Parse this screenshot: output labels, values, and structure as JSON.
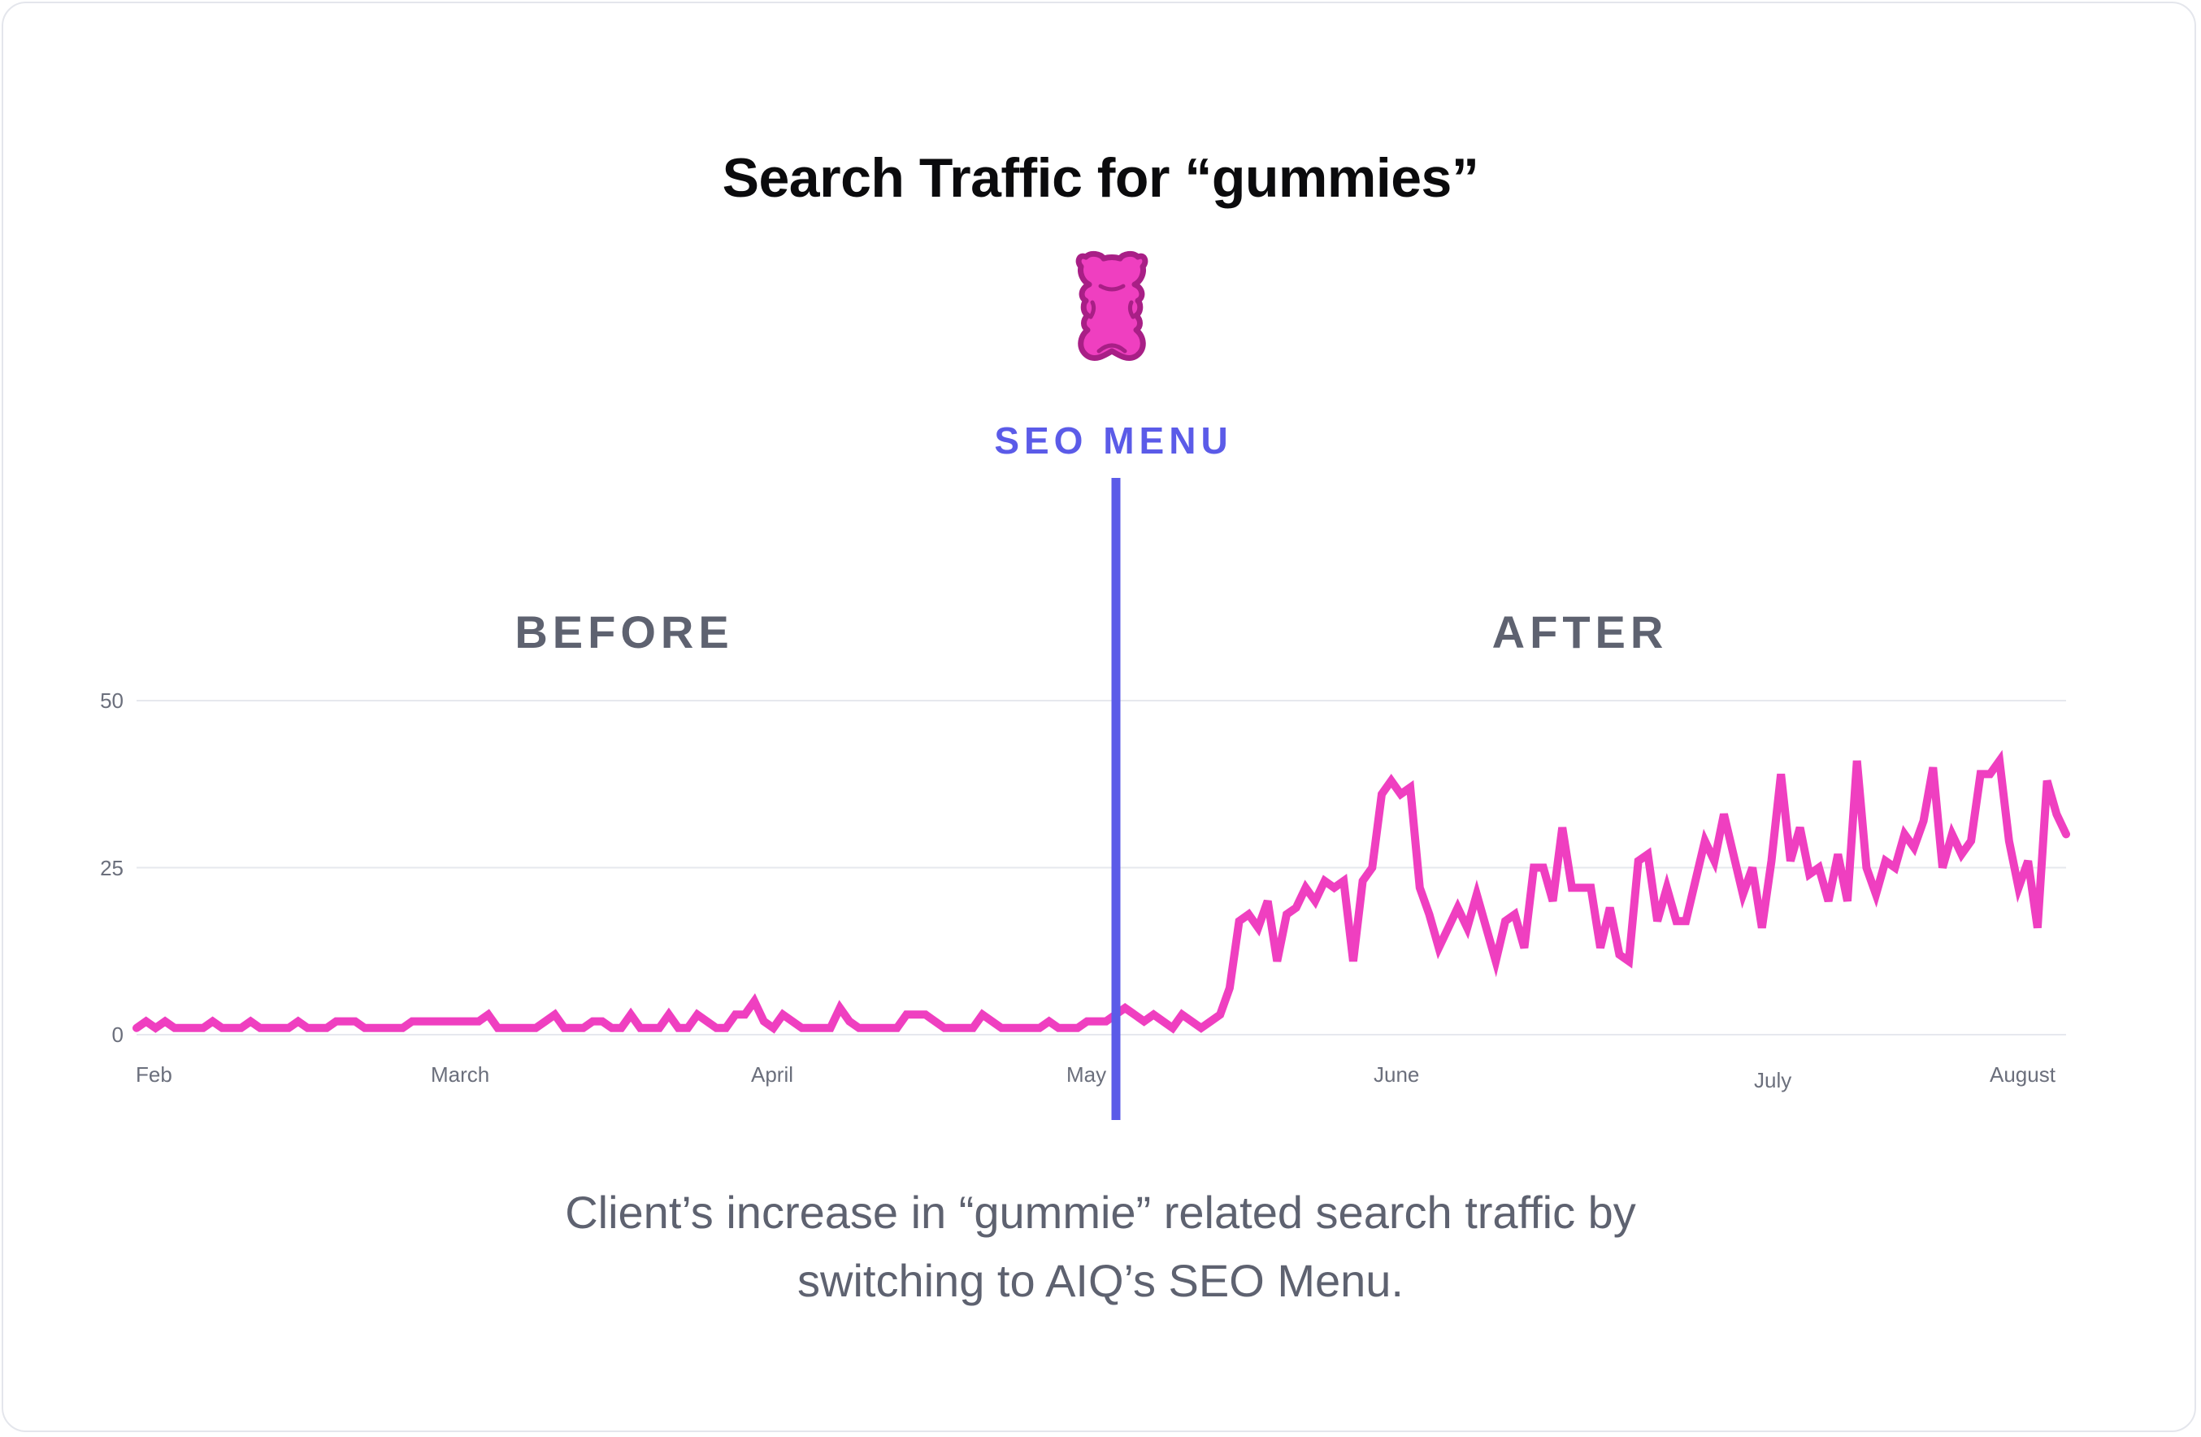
{
  "colors": {
    "line": "#ef3fc0",
    "marker": "#5b5be8",
    "grid": "#e6e8ee",
    "bear_fill": "#ef3fc0",
    "bear_stroke": "#a81f86"
  },
  "icon": "gummy-bear-icon",
  "caption": {
    "line1": "Client’s  increase in “gummie” related search traffic by",
    "line2": "switching to AIQ’s SEO Menu."
  },
  "chart_data": {
    "type": "line",
    "title": "Search Traffic for “gummies”",
    "y_ticks": [
      "50",
      "25",
      "0"
    ],
    "ylim": [
      0,
      50
    ],
    "grid": true,
    "x_tick_labels": [
      "Feb",
      "March",
      "April",
      "May",
      "June",
      "July",
      "August"
    ],
    "annotations": {
      "marker_label": "SEO MENU",
      "before_label": "BEFORE",
      "after_label": "AFTER",
      "marker_x": "May"
    },
    "series": [
      {
        "values": [
          1,
          2,
          1,
          2,
          1,
          1,
          1,
          1,
          2,
          1,
          1,
          1,
          2,
          1,
          1,
          1,
          1,
          2,
          1,
          1,
          1,
          2,
          2,
          2,
          1,
          1,
          1,
          1,
          1,
          2,
          2,
          2,
          2,
          2,
          2,
          2,
          2,
          3,
          1,
          1,
          1,
          1,
          1,
          2,
          3,
          1,
          1,
          1,
          2,
          2,
          1,
          1,
          3,
          1,
          1,
          1,
          3,
          1,
          1,
          3,
          2,
          1,
          1,
          3,
          3,
          5,
          2,
          1,
          3,
          2,
          1,
          1,
          1,
          1,
          4,
          2,
          1,
          1,
          1,
          1,
          1,
          3,
          3,
          3,
          2,
          1,
          1,
          1,
          1,
          3,
          2,
          1,
          1,
          1,
          1,
          1,
          2,
          1,
          1,
          1,
          2,
          2,
          2,
          3,
          4,
          3,
          2,
          3,
          2,
          1,
          3,
          2,
          1,
          2,
          3,
          7,
          17,
          18,
          16,
          20,
          11,
          18,
          19,
          22,
          20,
          23,
          22,
          23,
          11,
          23,
          25,
          36,
          38,
          36,
          37,
          22,
          18,
          13,
          16,
          19,
          16,
          21,
          16,
          11,
          17,
          18,
          13,
          25,
          25,
          20,
          31,
          22,
          22,
          22,
          13,
          19,
          12,
          11,
          26,
          27,
          17,
          22,
          17,
          17,
          23,
          29,
          26,
          33,
          27,
          21,
          25,
          16,
          26,
          39,
          26,
          31,
          24,
          25,
          20,
          27,
          20,
          41,
          25,
          21,
          26,
          25,
          30,
          28,
          32,
          40,
          25,
          30,
          27,
          29,
          39,
          39,
          41,
          29,
          22,
          26,
          16,
          38,
          33,
          30
        ]
      }
    ]
  }
}
